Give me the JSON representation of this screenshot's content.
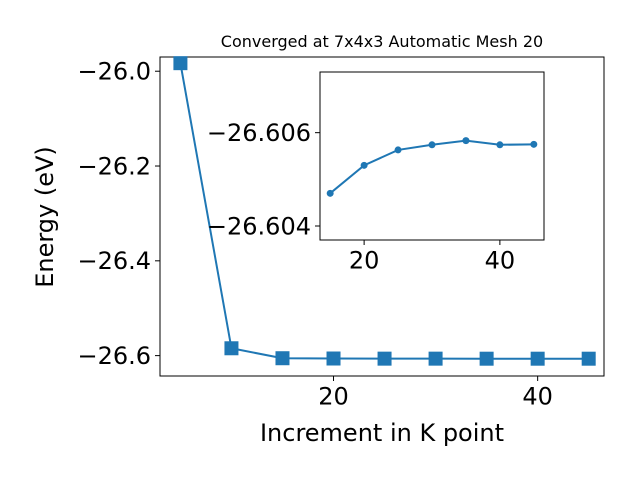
{
  "chart_data": [
    {
      "type": "line",
      "title": "Converged at 7x4x3 Automatic Mesh 20",
      "xlabel": "Increment in K point",
      "ylabel": "Energy (eV)",
      "xlim": [
        3,
        46.5
      ],
      "ylim": [
        -26.643,
        -25.97
      ],
      "grid": false,
      "legend": "none",
      "marker": "square",
      "color": "#1f77b4",
      "x": [
        5,
        10,
        15,
        20,
        25,
        30,
        35,
        40,
        45
      ],
      "y": [
        -25.983,
        -26.5845,
        -26.6055,
        -26.6061,
        -26.6064,
        -26.6064,
        -26.6065,
        -26.6065,
        -26.6065
      ],
      "xticks": [
        20,
        40
      ],
      "xtick_labels": [
        "20",
        "40"
      ],
      "yticks": [
        -26.0,
        -26.2,
        -26.4,
        -26.6
      ],
      "ytick_labels": [
        "−26.0",
        "−26.2",
        "−26.4",
        "−26.6"
      ]
    },
    {
      "type": "line",
      "title": "",
      "xlabel": "",
      "ylabel": "",
      "inset": true,
      "xlim": [
        13.5,
        46.5
      ],
      "ylim": [
        -26.6037,
        -26.6073
      ],
      "grid": false,
      "marker": "circle",
      "color": "#1f77b4",
      "x": [
        15,
        20,
        25,
        30,
        35,
        40,
        45
      ],
      "y": [
        -26.6047,
        -26.6053,
        -26.60563,
        -26.60574,
        -26.60583,
        -26.60574,
        -26.60575
      ],
      "xticks": [
        20,
        40
      ],
      "xtick_labels": [
        "20",
        "40"
      ],
      "yticks": [
        -26.606,
        -26.604
      ],
      "ytick_labels": [
        "−26.606",
        "−26.604"
      ]
    }
  ]
}
